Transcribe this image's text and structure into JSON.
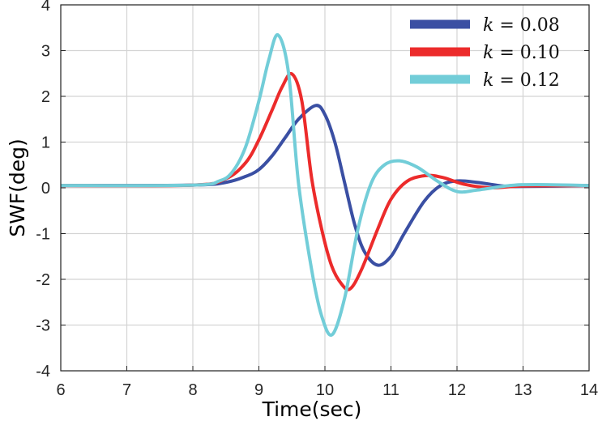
{
  "chart_data": {
    "type": "line",
    "title": "",
    "xlabel": "Time(sec)",
    "ylabel": "SWF(deg)",
    "xlim": [
      6,
      14
    ],
    "ylim": [
      -4,
      4
    ],
    "xticks": [
      "6",
      "7",
      "8",
      "9",
      "10",
      "11",
      "12",
      "13",
      "14"
    ],
    "yticks": [
      "-4",
      "-3",
      "-2",
      "-1",
      "0",
      "1",
      "2",
      "3",
      "4"
    ],
    "grid": true,
    "legend_position": "top-right",
    "series": [
      {
        "name": "k = 0.08",
        "color": "#3a4fa3",
        "x": [
          6,
          8,
          8.5,
          8.8,
          9.0,
          9.2,
          9.4,
          9.6,
          9.86,
          10.0,
          10.15,
          10.3,
          10.45,
          10.6,
          10.8,
          11.0,
          11.2,
          11.5,
          11.75,
          12.0,
          12.3,
          12.7,
          13,
          14
        ],
        "y": [
          0.05,
          0.06,
          0.12,
          0.25,
          0.4,
          0.7,
          1.1,
          1.5,
          1.8,
          1.6,
          1.0,
          0.1,
          -0.8,
          -1.4,
          -1.69,
          -1.5,
          -1.0,
          -0.3,
          0.05,
          0.15,
          0.12,
          0.04,
          0.03,
          0.05
        ]
      },
      {
        "name": "k = 0.10",
        "color": "#ec2b2b",
        "x": [
          6,
          8,
          8.5,
          8.8,
          9.0,
          9.2,
          9.35,
          9.5,
          9.65,
          9.8,
          9.95,
          10.1,
          10.25,
          10.38,
          10.55,
          10.8,
          11.0,
          11.25,
          11.54,
          11.8,
          12.1,
          12.5,
          13,
          14
        ],
        "y": [
          0.05,
          0.06,
          0.2,
          0.55,
          1.05,
          1.7,
          2.2,
          2.49,
          1.9,
          0.2,
          -0.9,
          -1.7,
          -2.1,
          -2.21,
          -1.8,
          -0.9,
          -0.25,
          0.15,
          0.27,
          0.22,
          0.08,
          0.0,
          0.04,
          0.05
        ]
      },
      {
        "name": "k = 0.12",
        "color": "#72cdd8",
        "x": [
          6,
          8,
          8.4,
          8.6,
          8.8,
          9.0,
          9.15,
          9.29,
          9.45,
          9.6,
          9.8,
          9.95,
          10.11,
          10.3,
          10.5,
          10.7,
          10.9,
          11.13,
          11.4,
          11.7,
          12.0,
          12.3,
          12.8,
          13.2,
          14
        ],
        "y": [
          0.05,
          0.06,
          0.15,
          0.35,
          0.9,
          1.9,
          2.8,
          3.34,
          2.5,
          0.1,
          -1.8,
          -2.8,
          -3.21,
          -2.4,
          -0.9,
          0.1,
          0.5,
          0.59,
          0.45,
          0.15,
          -0.08,
          -0.05,
          0.05,
          0.07,
          0.05
        ]
      }
    ]
  }
}
